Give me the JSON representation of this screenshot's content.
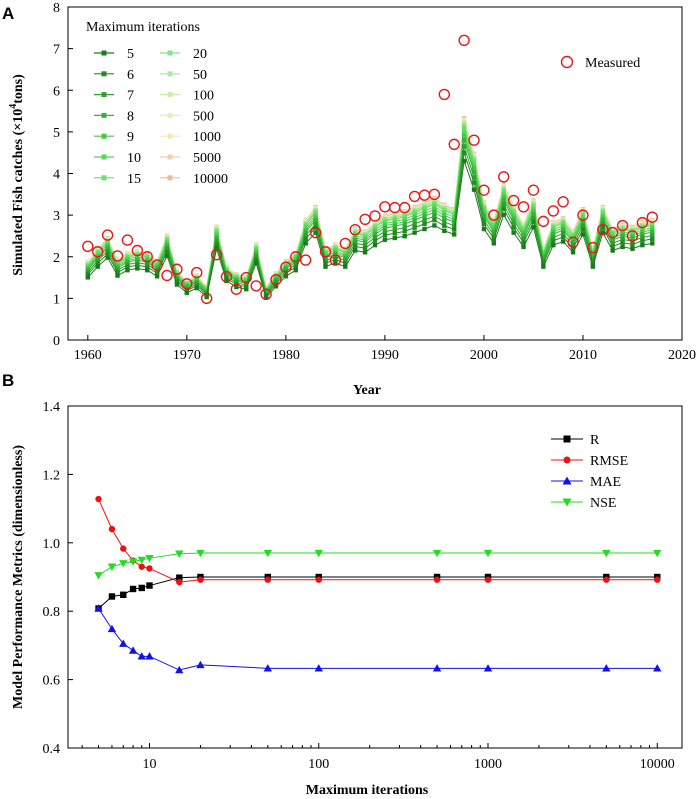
{
  "chart_data": [
    {
      "panel": "A",
      "type": "line",
      "xlabel": "Year",
      "ylabel_prefix": "Simulated Fish catches (×10",
      "ylabel_sup": "4",
      "ylabel_suffix": "tons)",
      "xlim": [
        1958,
        2020
      ],
      "ylim": [
        0,
        8
      ],
      "xticks": [
        1960,
        1970,
        1980,
        1990,
        2000,
        2010,
        2020
      ],
      "yticks": [
        0,
        1,
        2,
        3,
        4,
        5,
        6,
        7,
        8
      ],
      "legend_title": "Maximum iterations",
      "measured_label": "Measured",
      "years": [
        1960,
        1961,
        1962,
        1963,
        1964,
        1965,
        1966,
        1967,
        1968,
        1969,
        1970,
        1971,
        1972,
        1973,
        1974,
        1975,
        1976,
        1977,
        1978,
        1979,
        1980,
        1981,
        1982,
        1983,
        1984,
        1985,
        1986,
        1987,
        1988,
        1989,
        1990,
        1991,
        1992,
        1993,
        1994,
        1995,
        1996,
        1997,
        1998,
        1999,
        2000,
        2001,
        2002,
        2003,
        2004,
        2005,
        2006,
        2007,
        2008,
        2009,
        2010,
        2011,
        2012,
        2013,
        2014,
        2015,
        2016,
        2017
      ],
      "measured": [
        2.25,
        2.12,
        2.52,
        2.02,
        2.4,
        2.15,
        2.0,
        1.8,
        1.55,
        1.7,
        1.35,
        1.62,
        1.0,
        2.05,
        1.52,
        1.22,
        1.5,
        1.3,
        1.1,
        1.45,
        1.75,
        2.0,
        1.92,
        2.58,
        2.12,
        1.92,
        2.32,
        2.65,
        2.9,
        2.98,
        3.2,
        3.18,
        3.18,
        3.45,
        3.48,
        3.5,
        5.9,
        4.7,
        7.2,
        4.8,
        3.6,
        3.0,
        3.92,
        3.35,
        3.2,
        3.6,
        2.85,
        3.1,
        3.32,
        2.35,
        3.0,
        2.22,
        2.65,
        2.58,
        2.75,
        2.5,
        2.82,
        2.95
      ],
      "series": [
        {
          "name": "5",
          "color": "#1c7a1c",
          "marker": "square",
          "scale": 0.86
        },
        {
          "name": "6",
          "color": "#238b23",
          "marker": "square",
          "scale": 0.9
        },
        {
          "name": "7",
          "color": "#2ea02e",
          "marker": "square",
          "scale": 0.93
        },
        {
          "name": "8",
          "color": "#37b437",
          "marker": "square",
          "scale": 0.96
        },
        {
          "name": "9",
          "color": "#45c845",
          "marker": "square",
          "scale": 0.98
        },
        {
          "name": "10",
          "color": "#55d855",
          "marker": "square",
          "scale": 1.0
        },
        {
          "name": "15",
          "color": "#6ae06a",
          "marker": "square",
          "scale": 1.02
        },
        {
          "name": "20",
          "color": "#86e586",
          "marker": "square",
          "scale": 1.03
        },
        {
          "name": "50",
          "color": "#a8ea98",
          "marker": "square",
          "scale": 1.04
        },
        {
          "name": "100",
          "color": "#c8eea8",
          "marker": "square",
          "scale": 1.045
        },
        {
          "name": "500",
          "color": "#e6efb4",
          "marker": "square",
          "scale": 1.05
        },
        {
          "name": "1000",
          "color": "#f2e8b4",
          "marker": "square",
          "scale": 1.055
        },
        {
          "name": "5000",
          "color": "#f0d0a4",
          "marker": "square",
          "scale": 1.06
        },
        {
          "name": "10000",
          "color": "#eebb92",
          "marker": "square",
          "scale": 1.065
        }
      ],
      "base_simulated": [
        1.75,
        2.05,
        2.3,
        1.8,
        1.95,
        2.0,
        1.95,
        1.78,
        2.35,
        1.55,
        1.32,
        1.45,
        1.2,
        2.55,
        1.65,
        1.48,
        1.42,
        2.15,
        1.18,
        1.5,
        1.78,
        1.95,
        2.7,
        3.0,
        2.05,
        2.15,
        2.05,
        2.5,
        2.45,
        2.65,
        2.8,
        2.85,
        2.9,
        3.0,
        3.1,
        3.2,
        3.05,
        2.95,
        5.0,
        4.2,
        3.1,
        2.7,
        3.5,
        3.0,
        2.6,
        3.15,
        2.05,
        2.65,
        2.75,
        2.45,
        2.95,
        2.05,
        3.0,
        2.5,
        2.6,
        2.55,
        2.65,
        2.7
      ]
    },
    {
      "panel": "B",
      "type": "line",
      "xscale": "log",
      "xlabel": "Maximum iterations",
      "ylabel": "Model Performance Metrics (dimensionless)",
      "xlim": [
        3.3,
        14000
      ],
      "ylim": [
        0.4,
        1.4
      ],
      "xticks": [
        10,
        100,
        1000,
        10000
      ],
      "xtick_labels": [
        "10",
        "100",
        "1000",
        "10000"
      ],
      "yticks": [
        0.4,
        0.6,
        0.8,
        1.0,
        1.2,
        1.4
      ],
      "ytick_labels": [
        "0.4",
        "0.6",
        "0.8",
        "1.0",
        "1.2",
        "1.4"
      ],
      "x": [
        5,
        6,
        7,
        8,
        9,
        10,
        15,
        20,
        50,
        100,
        500,
        1000,
        5000,
        10000
      ],
      "series": [
        {
          "name": "R",
          "color": "#000000",
          "marker": "square",
          "values": [
            0.808,
            0.843,
            0.848,
            0.865,
            0.868,
            0.875,
            0.898,
            0.9,
            0.9,
            0.9,
            0.9,
            0.9,
            0.9,
            0.9
          ]
        },
        {
          "name": "RMSE",
          "color": "#ee1111",
          "marker": "circle",
          "values": [
            1.128,
            1.04,
            0.983,
            0.948,
            0.93,
            0.925,
            0.885,
            0.892,
            0.892,
            0.892,
            0.892,
            0.892,
            0.892,
            0.892
          ]
        },
        {
          "name": "MAE",
          "color": "#1111ee",
          "marker": "triangle-up",
          "values": [
            0.808,
            0.748,
            0.705,
            0.685,
            0.668,
            0.668,
            0.628,
            0.643,
            0.633,
            0.633,
            0.633,
            0.633,
            0.633,
            0.633
          ]
        },
        {
          "name": "NSE",
          "color": "#22dd22",
          "marker": "triangle-down",
          "values": [
            0.905,
            0.93,
            0.94,
            0.945,
            0.95,
            0.955,
            0.968,
            0.97,
            0.97,
            0.97,
            0.97,
            0.97,
            0.97,
            0.97
          ]
        }
      ]
    }
  ]
}
